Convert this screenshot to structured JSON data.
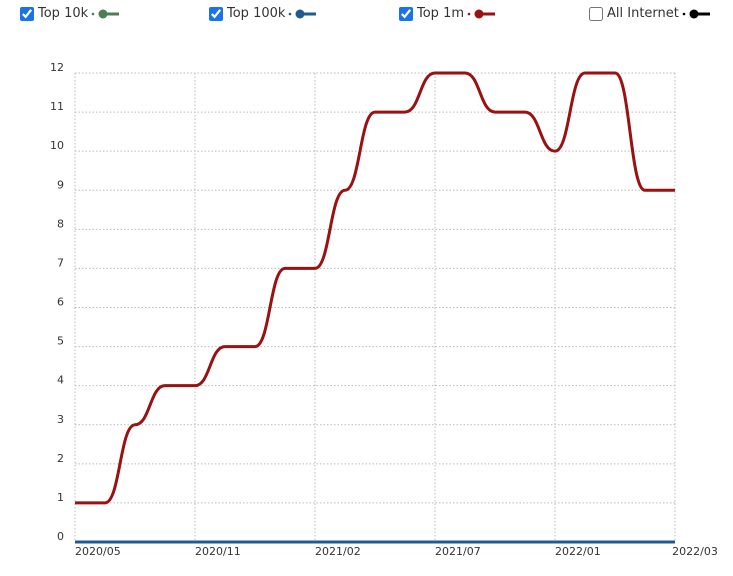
{
  "chart_data": {
    "type": "line",
    "categories": [
      "2020/05",
      null,
      null,
      null,
      "2020/11",
      null,
      null,
      null,
      "2021/02",
      null,
      null,
      null,
      "2021/07",
      null,
      null,
      null,
      "2022/01",
      null,
      null,
      null,
      "2022/03"
    ],
    "series": [
      {
        "name": "Top 10k",
        "color": "#4e7d52",
        "checked": true,
        "values": [
          0,
          0,
          0,
          0,
          0,
          0,
          0,
          0,
          0,
          0,
          0,
          0,
          0,
          0,
          0,
          0,
          0,
          0,
          0,
          0,
          0
        ]
      },
      {
        "name": "Top 100k",
        "color": "#1f5b93",
        "checked": true,
        "values": [
          0,
          0,
          0,
          0,
          0,
          0,
          0,
          0,
          0,
          0,
          0,
          0,
          0,
          0,
          0,
          0,
          0,
          0,
          0,
          0,
          0
        ]
      },
      {
        "name": "Top 1m",
        "color": "#9a1111",
        "checked": true,
        "values": [
          1,
          1,
          3,
          4,
          4,
          5,
          5,
          7,
          7,
          9,
          11,
          11,
          12,
          12,
          11,
          11,
          10,
          12,
          12,
          9,
          9
        ]
      },
      {
        "name": "All Internet",
        "color": "#000000",
        "checked": false
      }
    ],
    "ylim": [
      0,
      12
    ],
    "yticks": [
      0,
      1,
      2,
      3,
      4,
      5,
      6,
      7,
      8,
      9,
      10,
      11,
      12
    ],
    "grid": true
  }
}
